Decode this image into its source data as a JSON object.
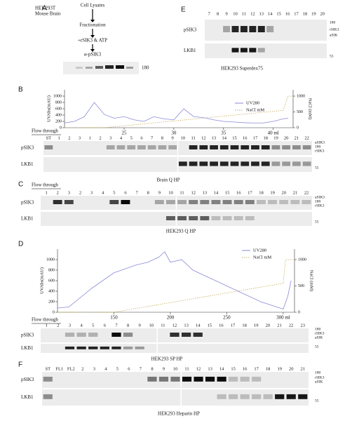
{
  "panel_a": {
    "letter": "A",
    "source": [
      "HEK293T",
      "Mouse Brain"
    ],
    "steps": [
      "Cell Lysates",
      "Fractionation",
      "+rSIK3 & ATP",
      "α-pSIK3"
    ],
    "marker": "180"
  },
  "panel_e": {
    "letter": "E",
    "lanes": [
      "7",
      "8",
      "9",
      "10",
      "11",
      "12",
      "13",
      "14",
      "15",
      "16",
      "17",
      "18",
      "19",
      "20"
    ],
    "rows": [
      "pSIK3",
      "LKB1"
    ],
    "markers": [
      "180",
      "rSIK3",
      "aSIK"
    ],
    "marker_lower": "55",
    "caption": "HEK293 Superdex75"
  },
  "panel_b": {
    "letter": "B",
    "plot": {
      "y_label": "UVAbs(mAU)",
      "y2_label": "NaCl (mM)",
      "xlim": [
        19,
        42
      ],
      "ylim": [
        0,
        1200
      ],
      "y2lim": [
        0,
        1200
      ],
      "xticks": [
        25,
        30,
        35,
        {
          "value": 40,
          "label": "40 ml"
        }
      ],
      "yticks": [
        0,
        200,
        400,
        600,
        800,
        1000
      ],
      "y2ticks": [
        0,
        500,
        1000
      ],
      "series": [
        {
          "name": "UV280",
          "color": "#8a8ad8",
          "x": [
            19,
            20,
            21,
            22,
            23,
            24,
            25,
            26,
            27,
            28,
            29,
            30,
            31,
            32,
            33,
            34,
            35,
            36,
            37,
            38,
            39,
            40,
            41,
            41.5
          ],
          "values": [
            150,
            200,
            350,
            800,
            420,
            300,
            350,
            250,
            200,
            350,
            280,
            250,
            600,
            350,
            320,
            250,
            200,
            180,
            160,
            150,
            150,
            200,
            280,
            300
          ]
        },
        {
          "name": "NaCl mM",
          "color": "#c8b060",
          "axis": "y2",
          "x": [
            19,
            23,
            41,
            41.5,
            42
          ],
          "values": [
            0,
            0,
            550,
            1000,
            1000
          ]
        }
      ]
    },
    "flow_through": "Flow through",
    "lanes": [
      "ST",
      "1",
      "2",
      "3",
      "1",
      "2",
      "3",
      "4",
      "5",
      "6",
      "7",
      "8",
      "9",
      "10",
      "11",
      "12",
      "13",
      "14",
      "15",
      "16",
      "17",
      "18",
      "19",
      "20",
      "21",
      "22"
    ],
    "rows": [
      "pSIK3",
      "LKB1"
    ],
    "markers": [
      "aSIK3",
      "180",
      "rSIK3"
    ],
    "marker_lower": "55",
    "caption": "Brain Q HP"
  },
  "panel_c": {
    "letter": "C",
    "flow_through": "Flow through",
    "lanes": [
      "1",
      "2",
      "3",
      "2",
      "3",
      "4",
      "5",
      "6",
      "7",
      "8",
      "9",
      "10",
      "11",
      "12",
      "13",
      "14",
      "15",
      "16",
      "17",
      "18",
      "19",
      "20",
      "21",
      "22"
    ],
    "rows": [
      "pSIK3",
      "LKB1"
    ],
    "markers": [
      "aSIK3",
      "180",
      "rSIK3"
    ],
    "marker_lower": "55",
    "caption": "HEK293 Q HP"
  },
  "panel_d": {
    "letter": "D",
    "plot": {
      "y_label": "UVAbs(mAU)",
      "y2_label": "NaCl (mM)",
      "xlim": [
        100,
        310
      ],
      "ylim": [
        0,
        1200
      ],
      "y2lim": [
        0,
        1200
      ],
      "xticks": [
        150,
        200,
        250,
        {
          "value": 300,
          "label": "300 ml"
        }
      ],
      "yticks": [
        0,
        200,
        400,
        600,
        800,
        1000
      ],
      "y2ticks": [
        0,
        500,
        1000
      ],
      "series": [
        {
          "name": "UV280",
          "color": "#8a8ad8",
          "x": [
            100,
            110,
            130,
            150,
            170,
            180,
            190,
            195,
            200,
            210,
            220,
            240,
            260,
            280,
            300,
            304,
            307
          ],
          "values": [
            80,
            100,
            450,
            750,
            900,
            950,
            1050,
            1150,
            950,
            1000,
            800,
            600,
            400,
            200,
            60,
            300,
            600
          ]
        },
        {
          "name": "NaCl mM",
          "color": "#c8b060",
          "axis": "y2",
          "x": [
            100,
            150,
            300,
            302,
            310
          ],
          "values": [
            0,
            0,
            550,
            1000,
            1000
          ]
        }
      ]
    },
    "flow_through": "Flow through",
    "lanes": [
      "1",
      "2",
      "3",
      "4",
      "5",
      "6",
      "7",
      "8",
      "9",
      "10",
      "11",
      "12",
      "13",
      "14",
      "15",
      "16",
      "17",
      "18",
      "19",
      "20",
      "21",
      "22",
      "23"
    ],
    "rows": [
      "pSIK3",
      "LKB1"
    ],
    "markers": [
      "180",
      "rSIK3",
      "aSIK"
    ],
    "marker_lower": "55",
    "caption": "HEK293 SP HP"
  },
  "panel_f": {
    "letter": "F",
    "lanes": [
      "ST",
      "FL1",
      "FL2",
      "2",
      "3",
      "4",
      "5",
      "6",
      "7",
      "8",
      "9",
      "10",
      "11",
      "12",
      "13",
      "14",
      "15",
      "16",
      "17",
      "18",
      "19",
      "20",
      "21"
    ],
    "rows": [
      "pSIK3",
      "LKB1"
    ],
    "markers": [
      "180",
      "rSIK3",
      "aSIK"
    ],
    "marker_lower": "55",
    "caption": "HEK293 Heparin HP"
  }
}
